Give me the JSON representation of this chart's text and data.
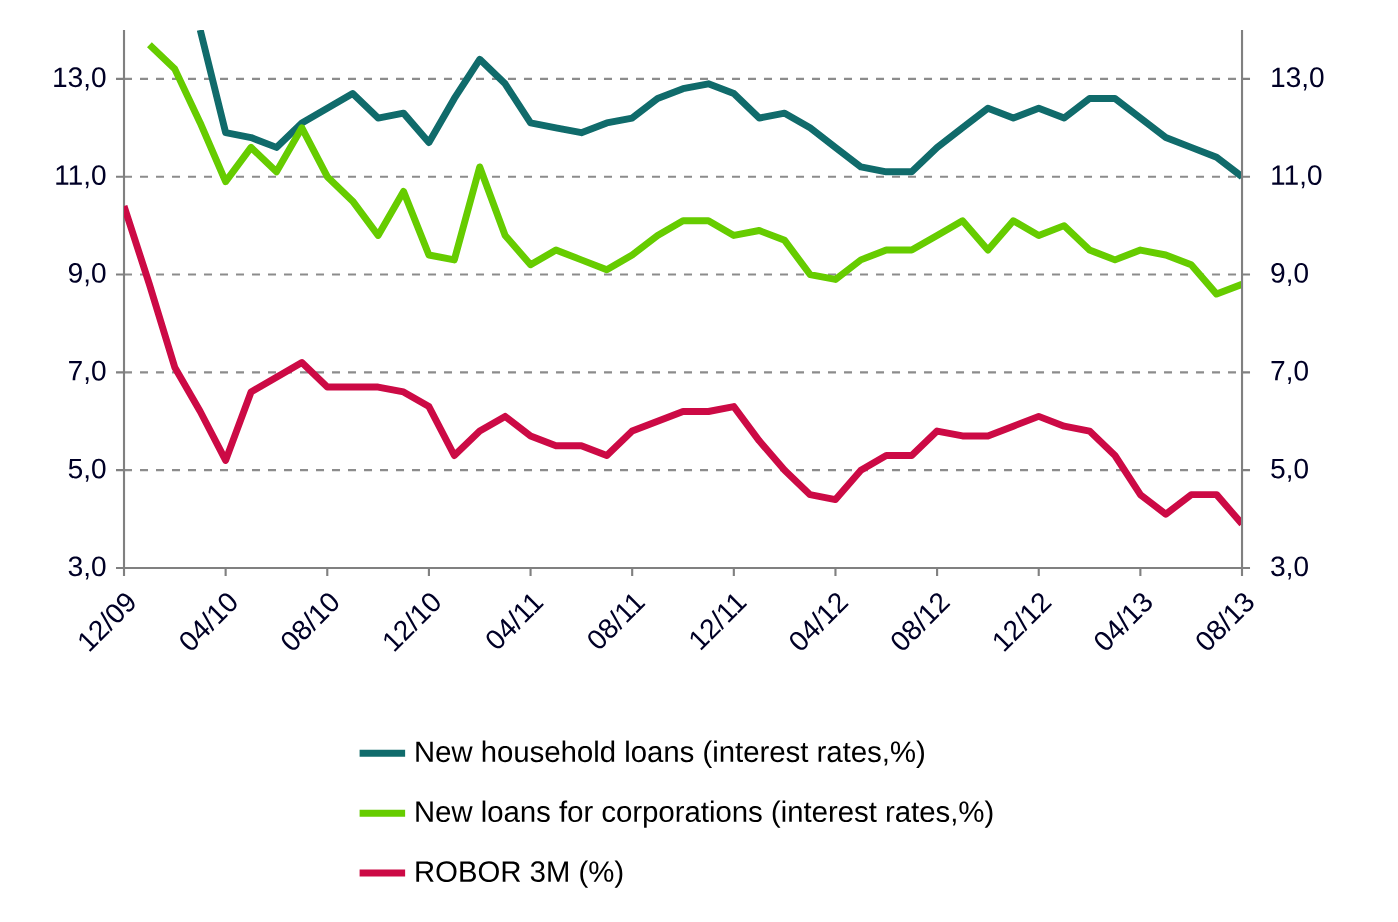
{
  "chart_data": {
    "type": "line",
    "categories": [
      "12/09",
      null,
      null,
      null,
      "04/10",
      null,
      null,
      null,
      "08/10",
      null,
      null,
      null,
      "12/10",
      null,
      null,
      null,
      "04/11",
      null,
      null,
      null,
      "08/11",
      null,
      null,
      null,
      "12/11",
      null,
      null,
      null,
      "04/12",
      null,
      null,
      null,
      "08/12",
      null,
      null,
      null,
      "12/12",
      null,
      null,
      null,
      "04/13",
      null,
      null,
      null,
      "08/13"
    ],
    "series": [
      {
        "name": "New household loans (interest rates,%)",
        "color": "#106b6b",
        "values": [
          null,
          null,
          null,
          14.0,
          11.9,
          11.8,
          11.6,
          12.1,
          12.4,
          12.7,
          12.2,
          12.3,
          11.7,
          12.6,
          13.4,
          12.9,
          12.1,
          12.0,
          11.9,
          12.1,
          12.2,
          12.6,
          12.8,
          12.9,
          12.7,
          12.2,
          12.3,
          12.0,
          11.6,
          11.2,
          11.1,
          11.1,
          11.6,
          12.0,
          12.4,
          12.2,
          12.4,
          12.2,
          12.6,
          12.6,
          12.2,
          11.8,
          11.6,
          11.4,
          11.0
        ]
      },
      {
        "name": "New loans for corporations (interest rates,%)",
        "color": "#66cc00",
        "values": [
          null,
          13.7,
          13.2,
          12.1,
          10.9,
          11.6,
          11.1,
          12.0,
          11.0,
          10.5,
          9.8,
          10.7,
          9.4,
          9.3,
          11.2,
          9.8,
          9.2,
          9.5,
          9.3,
          9.1,
          9.4,
          9.8,
          10.1,
          10.1,
          9.8,
          9.9,
          9.7,
          9.0,
          8.9,
          9.3,
          9.5,
          9.5,
          9.8,
          10.1,
          9.5,
          10.1,
          9.8,
          10.0,
          9.5,
          9.3,
          9.5,
          9.4,
          9.2,
          8.6,
          8.8
        ]
      },
      {
        "name": "ROBOR 3M  (%)",
        "color": "#cc0a45",
        "values": [
          10.4,
          8.8,
          7.1,
          6.2,
          5.2,
          6.6,
          6.9,
          7.2,
          6.7,
          6.7,
          6.7,
          6.6,
          6.3,
          5.3,
          5.8,
          6.1,
          5.7,
          5.5,
          5.5,
          5.3,
          5.8,
          6.0,
          6.2,
          6.2,
          6.3,
          5.6,
          5.0,
          4.5,
          4.4,
          5.0,
          5.3,
          5.3,
          5.8,
          5.7,
          5.7,
          5.9,
          6.1,
          5.9,
          5.8,
          5.3,
          4.5,
          4.1,
          4.5,
          4.5,
          3.9
        ]
      }
    ],
    "ylim": [
      3,
      14
    ],
    "yticks": [
      {
        "value": 3,
        "label": "3,0"
      },
      {
        "value": 5,
        "label": "5,0"
      },
      {
        "value": 7,
        "label": "7,0"
      },
      {
        "value": 9,
        "label": "9,0"
      },
      {
        "value": 11,
        "label": "11,0"
      },
      {
        "value": 13,
        "label": "13,0"
      }
    ],
    "y2lim": [
      3,
      14
    ],
    "y2ticks": [
      {
        "value": 3,
        "label": "3,0"
      },
      {
        "value": 5,
        "label": "5,0"
      },
      {
        "value": 7,
        "label": "7,0"
      },
      {
        "value": 9,
        "label": "9,0"
      },
      {
        "value": 11,
        "label": "11,0"
      },
      {
        "value": 13,
        "label": "13,0"
      }
    ],
    "grid": "y",
    "legend": "bottom"
  }
}
